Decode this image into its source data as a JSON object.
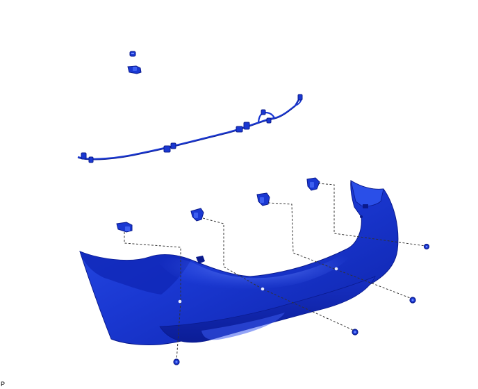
{
  "diagram": {
    "kind": "exploded-view",
    "accent_color": "#1f3fd6",
    "dark_color": "#0a1a8c",
    "parts": [
      "rear-bumper-cover",
      "parking-sensor-wire-harness",
      "ultrasonic-sensor",
      "sensor-retainer",
      "clip",
      "sensor-grommet"
    ]
  },
  "corner_label": "P"
}
